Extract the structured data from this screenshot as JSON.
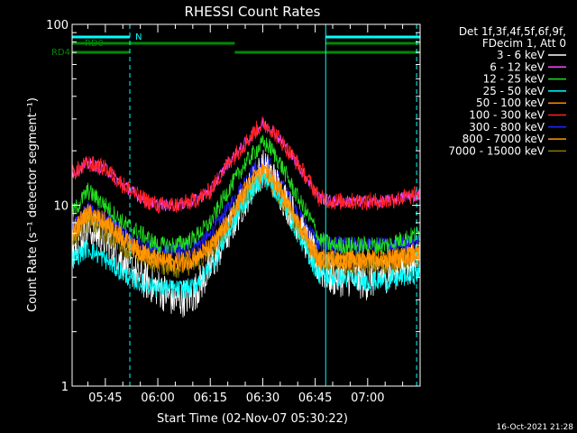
{
  "chart_data": {
    "type": "line",
    "title": "RHESSI Count Rates",
    "xlabel": "Start Time (02-Nov-07 05:30:22)",
    "ylabel": "Count Rate (s⁻¹ detector segment⁻¹)",
    "yscale": "log",
    "ylim": [
      1,
      100
    ],
    "xlim_minutes": [
      5.5,
      105
    ],
    "x_ticks": [
      {
        "m": 15,
        "label": "05:45"
      },
      {
        "m": 30,
        "label": "06:00"
      },
      {
        "m": 45,
        "label": "06:15"
      },
      {
        "m": 60,
        "label": "06:30"
      },
      {
        "m": 75,
        "label": "06:45"
      },
      {
        "m": 90,
        "label": "07:00"
      }
    ],
    "y_ticks": [
      {
        "v": 1,
        "label": "1"
      },
      {
        "v": 10,
        "label": "10"
      },
      {
        "v": 100,
        "label": "100"
      }
    ],
    "legend_header": [
      "Det 1f,3f,4f,5f,6f,9f,",
      "FDecim 1, Att 0"
    ],
    "legend_position": "top-right outside",
    "series": [
      {
        "name": "3 - 6 keV",
        "color": "#ffffff",
        "x": [
          5.5,
          10,
          15,
          20,
          25,
          30,
          35,
          40,
          45,
          50,
          55,
          58,
          60,
          62,
          65,
          70,
          75,
          76,
          80,
          85,
          90,
          95,
          100,
          105
        ],
        "y": [
          6,
          7.5,
          6.5,
          5,
          4,
          3.5,
          3,
          3.2,
          4.5,
          7,
          11,
          14,
          16,
          15,
          12,
          8,
          5,
          4.5,
          4,
          4,
          3.8,
          4.2,
          4.5,
          5
        ]
      },
      {
        "name": "6 - 12 keV",
        "color": "#ff44ff",
        "x": [
          5.5,
          10,
          15,
          20,
          25,
          30,
          35,
          40,
          45,
          50,
          55,
          58,
          60,
          62,
          65,
          70,
          75,
          76,
          80,
          85,
          90,
          95,
          100,
          105
        ],
        "y": [
          15,
          17,
          16,
          13,
          11,
          10,
          10,
          10.5,
          12,
          17,
          22,
          26,
          28,
          27,
          23,
          17,
          12,
          11,
          10.5,
          10.5,
          10.5,
          10.5,
          11,
          11.5
        ]
      },
      {
        "name": "12 - 25 keV",
        "color": "#22dd22",
        "x": [
          5.5,
          10,
          15,
          20,
          25,
          30,
          35,
          40,
          45,
          50,
          55,
          58,
          60,
          62,
          65,
          70,
          75,
          76,
          80,
          85,
          90,
          95,
          100,
          105
        ],
        "y": [
          9,
          12,
          10,
          8,
          7,
          6,
          6,
          6.5,
          8,
          12,
          17,
          20,
          22,
          21,
          17,
          11,
          7.5,
          6.5,
          6,
          6,
          6,
          6,
          6.5,
          7
        ]
      },
      {
        "name": "25 - 50 keV",
        "color": "#00ffff",
        "x": [
          5.5,
          10,
          15,
          20,
          25,
          30,
          35,
          40,
          45,
          50,
          55,
          58,
          60,
          62,
          65,
          70,
          75,
          76,
          80,
          85,
          90,
          95,
          100,
          105
        ],
        "y": [
          5,
          5.8,
          5,
          4.2,
          3.7,
          3.5,
          3.4,
          3.5,
          4.5,
          7,
          10.5,
          13,
          14,
          13.5,
          11,
          7,
          4.5,
          4.2,
          4,
          3.9,
          3.8,
          3.8,
          4,
          4.2
        ]
      },
      {
        "name": "50 - 100 keV",
        "color": "#ff8800",
        "x": [
          5.5,
          10,
          15,
          20,
          25,
          30,
          35,
          40,
          45,
          50,
          55,
          58,
          60,
          62,
          65,
          70,
          75,
          76,
          80,
          85,
          90,
          95,
          100,
          105
        ],
        "y": [
          7,
          9,
          8,
          6.5,
          5.5,
          5,
          4.8,
          5,
          5.8,
          8,
          12,
          14,
          15,
          14.5,
          12,
          8,
          5.5,
          5,
          5,
          5,
          5,
          5,
          5.2,
          5.5
        ]
      },
      {
        "name": "100 - 300 keV",
        "color": "#ff2222",
        "x": [
          5.5,
          10,
          15,
          20,
          25,
          30,
          35,
          40,
          45,
          50,
          55,
          58,
          60,
          62,
          65,
          70,
          75,
          76,
          80,
          85,
          90,
          95,
          100,
          105
        ],
        "y": [
          15,
          17,
          16,
          13,
          11,
          10,
          10,
          10.5,
          12,
          17,
          22,
          26,
          28,
          27,
          23,
          17,
          12,
          11,
          10.5,
          10.5,
          10.5,
          10.5,
          11,
          11.5
        ]
      },
      {
        "name": "300 - 800 keV",
        "color": "#2222ff",
        "x": [
          5.5,
          10,
          15,
          20,
          25,
          30,
          35,
          40,
          45,
          50,
          55,
          58,
          60,
          62,
          65,
          70,
          75,
          76,
          80,
          85,
          90,
          95,
          100,
          105
        ],
        "y": [
          7.5,
          9.5,
          8.5,
          7,
          6,
          5.6,
          5.5,
          5.8,
          6.8,
          9.5,
          13.5,
          16,
          17,
          16.5,
          13.5,
          9,
          6.5,
          6,
          6,
          6,
          6,
          6,
          6.2,
          6.5
        ]
      },
      {
        "name": "800 - 7000 keV",
        "color": "#ff9900",
        "x": [
          5.5,
          10,
          15,
          20,
          25,
          30,
          35,
          40,
          45,
          50,
          55,
          58,
          60,
          62,
          65,
          70,
          75,
          76,
          80,
          85,
          90,
          95,
          100,
          105
        ],
        "y": [
          7,
          9,
          8,
          6.5,
          5.5,
          5,
          4.8,
          5,
          5.8,
          8,
          12,
          14,
          15,
          14.5,
          12,
          8,
          5.5,
          5,
          5,
          5,
          5,
          5,
          5.2,
          5.5
        ]
      },
      {
        "name": "7000 - 15000 keV",
        "color": "#8a7a00",
        "x": [
          5.5,
          10,
          15,
          20,
          25,
          30,
          35,
          40,
          45,
          50,
          55,
          58,
          60,
          62,
          65,
          70,
          75,
          76,
          80,
          85,
          90,
          95,
          100,
          105
        ],
        "y": [
          6.5,
          8,
          7,
          6,
          5.2,
          4.8,
          4.5,
          4.7,
          5.5,
          7.5,
          11,
          13,
          14,
          13.5,
          11,
          7.5,
          5.2,
          4.8,
          4.7,
          4.7,
          4.7,
          4.7,
          5,
          5.2
        ]
      }
    ],
    "flags": [
      {
        "label": "N",
        "color": "#00ffff",
        "segments": [
          [
            5.5,
            22
          ],
          [
            78,
            105
          ]
        ]
      },
      {
        "label": "RD0",
        "color": "#008800",
        "segments": [
          [
            5.5,
            22
          ],
          [
            22,
            52
          ],
          [
            78,
            105
          ]
        ]
      },
      {
        "label": "RD4",
        "color": "#008800",
        "segments": [
          [
            5.5,
            22
          ],
          [
            52,
            78
          ],
          [
            78,
            105
          ]
        ]
      }
    ],
    "vlines_solid": [
      5.5,
      78
    ],
    "vlines_dashed": [
      22,
      104
    ]
  },
  "footer": {
    "timestamp": "16-Oct-2021 21:28"
  }
}
